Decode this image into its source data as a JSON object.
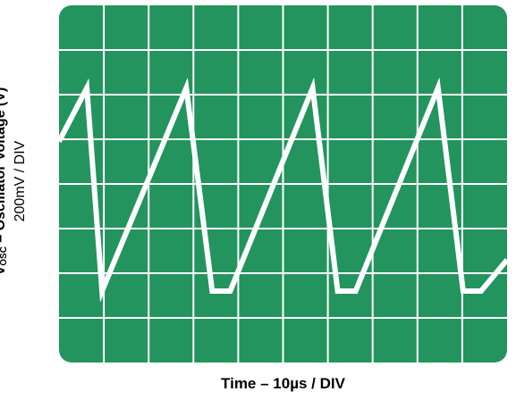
{
  "chart_data": {
    "type": "line",
    "title": "",
    "xlabel": "Time – 10µs / DIV",
    "ylabel": {
      "prefix": "V",
      "subscript": "OSC",
      "main": " – Oscillator Voltage (V)",
      "scale": "200mV / DIV"
    },
    "x_divisions": 10,
    "y_divisions": 8,
    "xlim": [
      0,
      10
    ],
    "ylim": [
      0,
      8
    ],
    "grid": true,
    "series": [
      {
        "x": [
          0.0,
          0.62,
          0.96,
          2.84,
          3.42,
          3.82,
          5.66,
          6.22,
          6.62,
          8.46,
          9.02,
          9.42,
          10.0
        ],
        "y": [
          4.95,
          6.15,
          1.6,
          6.15,
          1.6,
          1.6,
          6.15,
          1.6,
          1.6,
          6.15,
          1.6,
          1.6,
          2.3
        ]
      }
    ],
    "colors": {
      "screen": "#23945e",
      "grid": "#ffffff",
      "trace": "#ffffff"
    }
  }
}
